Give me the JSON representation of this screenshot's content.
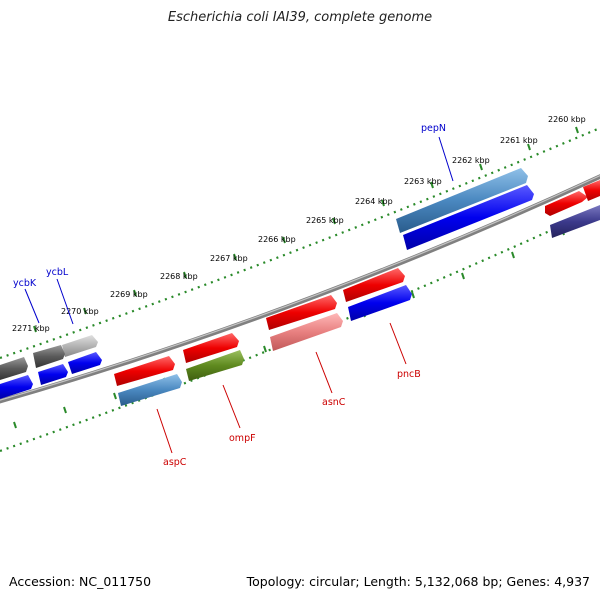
{
  "title": "Escherichia coli IAI39, complete genome",
  "footer": {
    "accession": "Accession: NC_011750",
    "info": "Topology: circular; Length: 5,132,068 bp; Genes: 4,937"
  },
  "ticks": [
    "2260 kbp",
    "2261 kbp",
    "2262 kbp",
    "2263 kbp",
    "2264 kbp",
    "2265 kbp",
    "2266 kbp",
    "2267 kbp",
    "2268 kbp",
    "2269 kbp",
    "2270 kbp",
    "2271 kbp"
  ],
  "gene_labels": [
    "pepN",
    "ycbK",
    "ycbL",
    "aspC",
    "ompF",
    "asnC",
    "pncB"
  ],
  "colors": {
    "red": "#e8000b",
    "blue": "#0000e6",
    "steel": "#4a88c0",
    "olive": "#5f8a1f",
    "grey": "#5a5a5a",
    "lightgrey": "#b4b4b4",
    "pink": "#e88080",
    "navy": "#3c3a8c",
    "dots": "#2a8a2a",
    "backbone": "#858585",
    "label_blue": "#0000cc",
    "label_red": "#cc0000"
  }
}
